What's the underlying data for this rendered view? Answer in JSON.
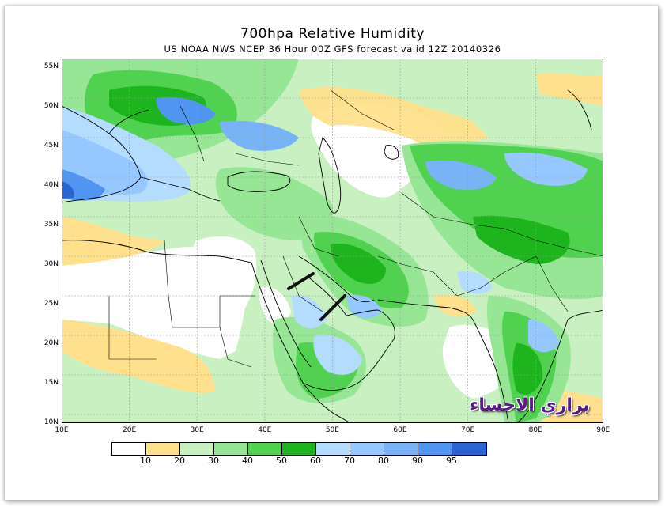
{
  "title": "700hpa Relative Humidity",
  "subtitle": "US NOAA NWS NCEP 36 Hour 00Z GFS forecast valid 12Z 20140326",
  "lat_labels": [
    "55N",
    "50N",
    "45N",
    "40N",
    "35N",
    "30N",
    "25N",
    "20N",
    "15N",
    "10N"
  ],
  "lon_labels": [
    "10E",
    "20E",
    "30E",
    "40E",
    "50E",
    "60E",
    "70E",
    "80E",
    "90E"
  ],
  "colorbar": {
    "colors": [
      "#ffffff",
      "#ffe08c",
      "#c8f0c0",
      "#96e696",
      "#50d250",
      "#1eb41e",
      "#b4dcff",
      "#96c8ff",
      "#78b4f5",
      "#5096f0",
      "#2864d2"
    ],
    "ticks": [
      "10",
      "20",
      "30",
      "40",
      "50",
      "60",
      "70",
      "80",
      "90",
      "95"
    ]
  },
  "watermark": "براري الاحساء",
  "colors": {
    "land_line": "#000000",
    "grid": "#9a9a9a",
    "wind_bar": "#111111"
  }
}
